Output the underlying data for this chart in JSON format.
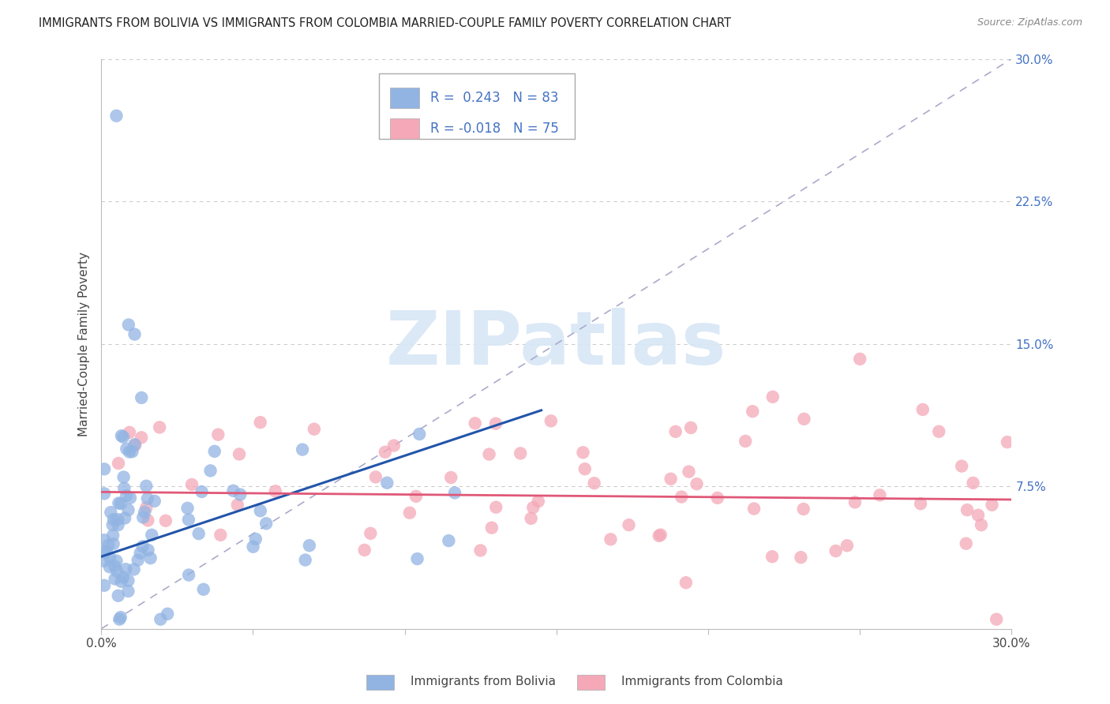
{
  "title": "IMMIGRANTS FROM BOLIVIA VS IMMIGRANTS FROM COLOMBIA MARRIED-COUPLE FAMILY POVERTY CORRELATION CHART",
  "source": "Source: ZipAtlas.com",
  "ylabel": "Married-Couple Family Poverty",
  "xlim": [
    0.0,
    0.3
  ],
  "ylim": [
    0.0,
    0.3
  ],
  "bolivia_color": "#92B4E3",
  "colombia_color": "#F4A8B8",
  "bolivia_R": 0.243,
  "bolivia_N": 83,
  "colombia_R": -0.018,
  "colombia_N": 75,
  "bolivia_trend_x": [
    0.0,
    0.145
  ],
  "bolivia_trend_y": [
    0.038,
    0.115
  ],
  "colombia_trend_x": [
    0.0,
    0.3
  ],
  "colombia_trend_y": [
    0.072,
    0.068
  ],
  "bolivia_trend_color": "#2255AA",
  "colombia_trend_color": "#E05878",
  "diag_line_x": [
    0.0,
    0.3
  ],
  "diag_line_y": [
    0.0,
    0.3
  ],
  "grid_color": "#CCCCCC",
  "background_color": "#FFFFFF",
  "watermark_text": "ZIPatlas",
  "watermark_color": "#D8E6F5",
  "legend_color": "#4472C4",
  "ytick_labels": [
    "7.5%",
    "15.0%",
    "22.5%",
    "30.0%"
  ],
  "ytick_vals": [
    0.075,
    0.15,
    0.225,
    0.3
  ],
  "xtick_labels_left": "0.0%",
  "xtick_labels_right": "30.0%",
  "legend_bottom_labels": [
    "Immigrants from Bolivia",
    "Immigrants from Colombia"
  ]
}
